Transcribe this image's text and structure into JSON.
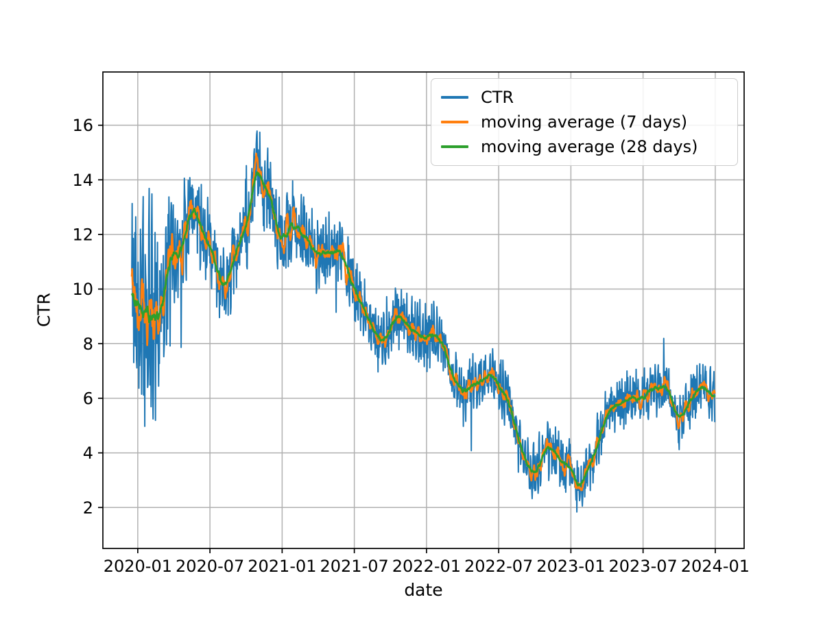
{
  "figure": {
    "background": "#ffffff",
    "xlabel": "date",
    "ylabel": "CTR"
  },
  "chart_data": {
    "type": "line",
    "title": "",
    "xlabel": "date",
    "ylabel": "CTR",
    "grid": true,
    "grid_color": "#b0b0b0",
    "spine_color": "#000000",
    "legend": {
      "position": "upper right",
      "entries": [
        "CTR",
        "moving average (7 days)",
        "moving average (28 days)"
      ]
    },
    "x_tick_labels": [
      "2020-01",
      "2020-07",
      "2021-01",
      "2021-07",
      "2022-01",
      "2022-07",
      "2023-01",
      "2023-07",
      "2024-01"
    ],
    "y_ticks": [
      2,
      4,
      6,
      8,
      10,
      12,
      14,
      16
    ],
    "ylim": [
      0.5,
      17.95
    ],
    "xlim_months": [
      -2.9,
      50.4
    ],
    "data_start_month": -0.5,
    "data_end_month": 48,
    "series": [
      {
        "name": "CTR",
        "color": "#1f77b4",
        "kind": "daily",
        "linewidth": 2.0
      },
      {
        "name": "moving average (7 days)",
        "color": "#ff7f0e",
        "kind": "moving-average",
        "window_days": 7,
        "linewidth": 2.7
      },
      {
        "name": "moving average (28 days)",
        "color": "#2ca02c",
        "kind": "moving-average",
        "window_days": 28,
        "linewidth": 2.7
      }
    ],
    "baseline_monthly": {
      "months": [
        "2020-01",
        "2020-02",
        "2020-03",
        "2020-04",
        "2020-05",
        "2020-06",
        "2020-07",
        "2020-08",
        "2020-09",
        "2020-10",
        "2020-11",
        "2020-12",
        "2021-01",
        "2021-02",
        "2021-03",
        "2021-04",
        "2021-05",
        "2021-06",
        "2021-07",
        "2021-08",
        "2021-09",
        "2021-10",
        "2021-11",
        "2021-12",
        "2022-01",
        "2022-02",
        "2022-03",
        "2022-04",
        "2022-05",
        "2022-06",
        "2022-07",
        "2022-08",
        "2022-09",
        "2022-10",
        "2022-11",
        "2022-12",
        "2023-01",
        "2023-02",
        "2023-03",
        "2023-04",
        "2023-05",
        "2023-06",
        "2023-07",
        "2023-08",
        "2023-09",
        "2023-10",
        "2023-11",
        "2023-12",
        "2024-01"
      ],
      "values": [
        10.0,
        8.6,
        9.6,
        11.2,
        12.5,
        12.8,
        11.5,
        10.0,
        11.0,
        12.0,
        14.4,
        13.2,
        12.0,
        12.5,
        11.9,
        11.0,
        11.4,
        11.2,
        10.0,
        9.2,
        7.9,
        8.8,
        8.9,
        8.4,
        8.3,
        8.5,
        7.0,
        6.0,
        6.6,
        7.0,
        6.6,
        5.8,
        3.6,
        3.4,
        4.1,
        3.9,
        3.3,
        2.9,
        4.2,
        5.4,
        5.8,
        6.0,
        6.1,
        6.3,
        6.4,
        4.9,
        6.0,
        6.4,
        6.1
      ]
    },
    "daily_noise_amplitude_monthly": [
      3.2,
      3.8,
      3.0,
      2.2,
      1.8,
      1.5,
      1.4,
      1.3,
      1.2,
      1.2,
      1.3,
      1.5,
      1.3,
      1.2,
      1.2,
      1.2,
      1.1,
      1.1,
      1.1,
      1.0,
      1.0,
      1.0,
      1.0,
      1.0,
      1.0,
      0.9,
      0.9,
      0.9,
      0.9,
      0.9,
      0.9,
      0.9,
      0.8,
      0.9,
      0.9,
      0.9,
      0.9,
      0.8,
      0.9,
      0.8,
      0.8,
      0.8,
      0.8,
      0.8,
      0.8,
      0.8,
      0.8,
      0.8,
      0.8
    ],
    "noise_seed": 42
  }
}
